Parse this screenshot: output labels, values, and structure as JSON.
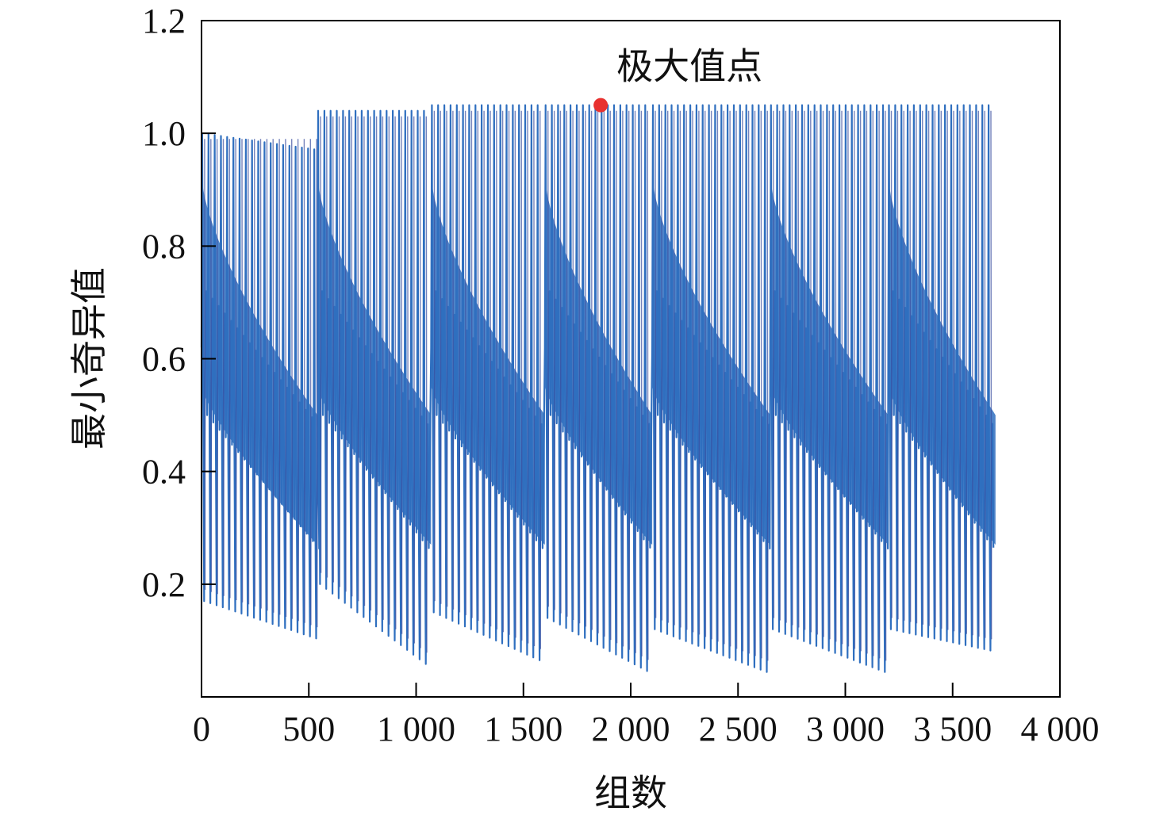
{
  "chart_data": {
    "type": "line",
    "title": "",
    "xlabel": "组数",
    "ylabel": "最小奇异值",
    "xlim": [
      0,
      4000
    ],
    "ylim": [
      0,
      1.2
    ],
    "x_ticks": [
      0,
      500,
      1000,
      1500,
      2000,
      2500,
      3000,
      3500,
      4000
    ],
    "x_tick_labels": [
      "0",
      "500",
      "1 000",
      "1 500",
      "2 000",
      "2 500",
      "3 000",
      "3 500",
      "4 000"
    ],
    "y_ticks": [
      0.2,
      0.4,
      0.6,
      0.8,
      1.0,
      1.2
    ],
    "y_tick_labels": [
      "0.2",
      "0.4",
      "0.6",
      "0.8",
      "1.0",
      "1.2"
    ],
    "grid": false,
    "legend": "none",
    "series": [
      {
        "color": "#2f6fbf",
        "x_range": [
          0,
          3700
        ],
        "oscillation_period": 29,
        "segments": [
          {
            "x_start": 0,
            "x_end": 540,
            "peak": 1.0,
            "trough_start": 0.17,
            "trough_end": 0.1
          },
          {
            "x_start": 540,
            "x_end": 1070,
            "peak": 1.04,
            "trough_start": 0.2,
            "trough_end": 0.05
          },
          {
            "x_start": 1070,
            "x_end": 1600,
            "peak": 1.05,
            "trough_start": 0.15,
            "trough_end": 0.06
          },
          {
            "x_start": 1600,
            "x_end": 2100,
            "peak": 1.05,
            "trough_start": 0.14,
            "trough_end": 0.04
          },
          {
            "x_start": 2100,
            "x_end": 2650,
            "peak": 1.05,
            "trough_start": 0.12,
            "trough_end": 0.04
          },
          {
            "x_start": 2650,
            "x_end": 3200,
            "peak": 1.05,
            "trough_start": 0.12,
            "trough_end": 0.04
          },
          {
            "x_start": 3200,
            "x_end": 3700,
            "peak": 1.05,
            "trough_start": 0.12,
            "trough_end": 0.08
          }
        ]
      }
    ],
    "annotations": [
      {
        "text": "极大值点",
        "x": 1860,
        "y": 1.05,
        "marker_color": "#e8312f"
      }
    ]
  }
}
